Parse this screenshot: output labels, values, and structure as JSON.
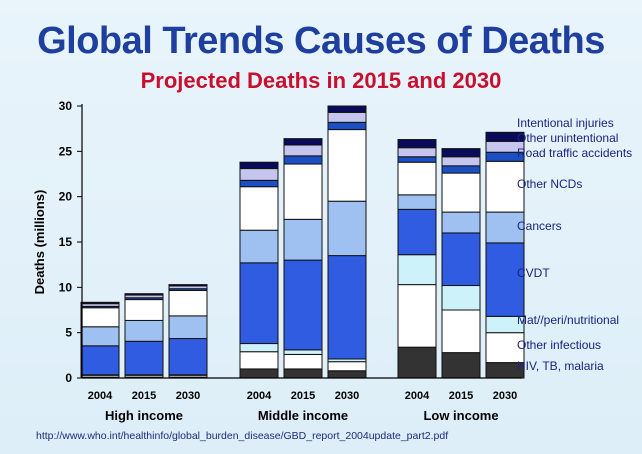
{
  "slide": {
    "title": "Global Trends Causes of Deaths",
    "subtitle": "Projected Deaths in 2015 and 2030",
    "source": "http://www.who.int/healthinfo/global_burden_disease/GBD_report_2004update_part2.pdf"
  },
  "chart_data": {
    "type": "bar",
    "stacked": true,
    "ylabel": "Deaths (millions)",
    "ylim": [
      0,
      30
    ],
    "yticks": [
      0,
      5,
      10,
      15,
      20,
      25,
      30
    ],
    "grid": false,
    "legend": "right",
    "groups": [
      {
        "name": "High income",
        "categories": [
          "2004",
          "2015",
          "2030"
        ]
      },
      {
        "name": "Middle income",
        "categories": [
          "2004",
          "2015",
          "2030"
        ]
      },
      {
        "name": "Low income",
        "categories": [
          "2004",
          "2015",
          "2030"
        ]
      }
    ],
    "series": [
      {
        "name": "HIV, TB, malaria",
        "color": "#333333",
        "values": [
          0.1,
          0.1,
          0.1,
          1.0,
          1.0,
          0.8,
          3.4,
          2.8,
          1.7
        ]
      },
      {
        "name": "Other infectious",
        "color": "#ffffff",
        "values": [
          0.2,
          0.2,
          0.2,
          1.9,
          1.6,
          1.0,
          6.9,
          4.7,
          3.3
        ]
      },
      {
        "name": "Mat//peri/nutritional",
        "color": "#cdf2fa",
        "values": [
          0.05,
          0.05,
          0.05,
          0.9,
          0.5,
          0.3,
          3.3,
          2.7,
          1.8
        ]
      },
      {
        "name": "CVDT",
        "color": "#2f5ce0",
        "values": [
          3.2,
          3.7,
          4.0,
          8.9,
          9.9,
          11.4,
          5.0,
          5.8,
          8.1
        ]
      },
      {
        "name": "Cancers",
        "color": "#9ec1f2",
        "values": [
          2.1,
          2.3,
          2.5,
          3.6,
          4.5,
          6.0,
          1.6,
          2.3,
          3.4
        ]
      },
      {
        "name": "Other NCDs",
        "color": "#ffffff",
        "values": [
          2.1,
          2.3,
          2.8,
          4.8,
          6.1,
          7.9,
          3.6,
          4.3,
          5.6
        ]
      },
      {
        "name": "Road traffic accidents",
        "color": "#1b4fc4",
        "values": [
          0.15,
          0.2,
          0.2,
          0.7,
          0.9,
          0.8,
          0.6,
          0.8,
          1.0
        ]
      },
      {
        "name": "Other unintentional",
        "color": "#c5c5ed",
        "values": [
          0.3,
          0.3,
          0.3,
          1.3,
          1.2,
          1.1,
          1.0,
          1.0,
          1.2
        ]
      },
      {
        "name": "Intentional injuries",
        "color": "#0a0a5a",
        "values": [
          0.15,
          0.15,
          0.15,
          0.7,
          0.7,
          0.7,
          0.9,
          0.9,
          1.0
        ]
      }
    ]
  }
}
